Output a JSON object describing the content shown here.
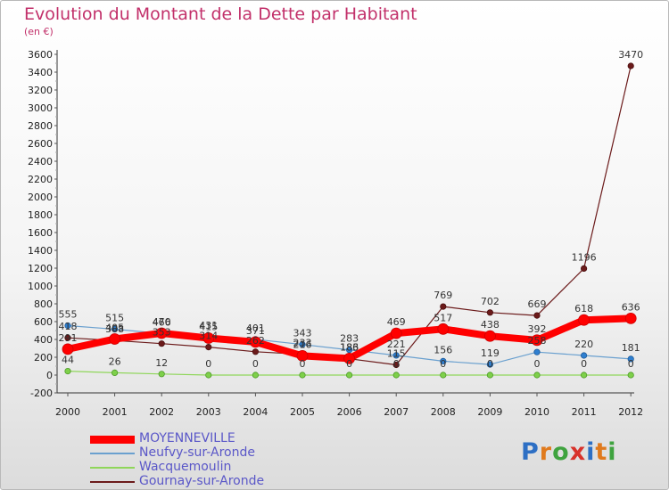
{
  "title": "Evolution du Montant de la Dette par Habitant",
  "subtitle": "(en €)",
  "logo": {
    "text": "Proxiti",
    "letter_colors": [
      "#2d6fc4",
      "#e07a1d",
      "#3fa33f",
      "#d8322b",
      "#2d6fc4",
      "#e07a1d",
      "#3fa33f"
    ]
  },
  "chart_data": {
    "type": "line",
    "title": "Evolution du Montant de la Dette par Habitant",
    "ylabel": "(en €)",
    "xlabel": "",
    "x": [
      "2000",
      "2001",
      "2002",
      "2003",
      "2004",
      "2005",
      "2006",
      "2007",
      "2008",
      "2009",
      "2010",
      "2011",
      "2012"
    ],
    "ylim": [
      -200,
      3600
    ],
    "yticks": [
      -200,
      0,
      200,
      400,
      600,
      800,
      1000,
      1200,
      1400,
      1600,
      1800,
      2000,
      2200,
      2400,
      2600,
      2800,
      3000,
      3200,
      3400,
      3600
    ],
    "grid": false,
    "legend_position": "bottom-left",
    "series": [
      {
        "name": "MOYENNEVILLE",
        "color": "#ff0000",
        "values": [
          291,
          405,
          470,
          415,
          371,
          216,
          186,
          469,
          517,
          438,
          392,
          618,
          636
        ]
      },
      {
        "name": "Neufvy-sur-Aronde",
        "color": "#6aa0cf",
        "values": [
          555,
          515,
          466,
          431,
          401,
          343,
          283,
          221,
          156,
          119,
          258,
          220,
          181
        ]
      },
      {
        "name": "Wacquemoulin",
        "color": "#8fd65a",
        "values": [
          44,
          26,
          12,
          0,
          0,
          0,
          0,
          0,
          0,
          0,
          0,
          0,
          0
        ]
      },
      {
        "name": "Gournay-sur-Aronde",
        "color": "#6b1a1a",
        "values": [
          418,
          388,
          353,
          314,
          262,
          233,
          183,
          115,
          769,
          702,
          669,
          1196,
          3470
        ]
      }
    ],
    "data_labels": [
      [
        "291",
        "405",
        "470",
        "415",
        "371",
        "216",
        "186",
        "469",
        "517",
        "438",
        "392",
        "618",
        "636"
      ],
      [
        "555",
        "515",
        "466",
        "431",
        "401",
        "343",
        "283",
        "221",
        "156",
        "119",
        "258",
        "220",
        "181"
      ],
      [
        "44",
        "26",
        "12",
        "0",
        "0",
        "0",
        "0",
        "0",
        "0",
        "0",
        "0",
        "0",
        "0"
      ],
      [
        "418",
        "388",
        "353",
        "314",
        "262",
        "233",
        "183",
        "115",
        "769",
        "702",
        "669",
        "1196",
        "3470"
      ]
    ]
  }
}
